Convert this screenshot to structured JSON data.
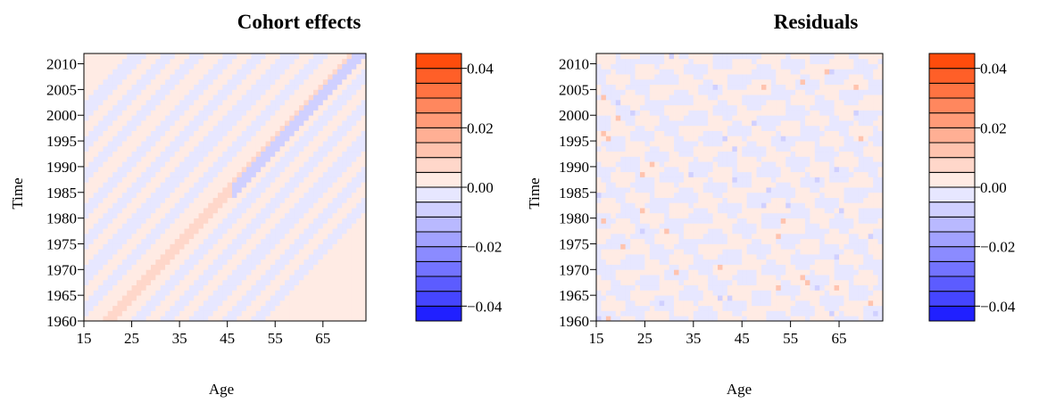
{
  "chart_data": [
    {
      "type": "heatmap",
      "title": "Cohort effects",
      "xlabel": "Age",
      "ylabel": "Time",
      "xlim": [
        15,
        74
      ],
      "ylim": [
        1960,
        2012
      ],
      "x_ticks": [
        "15",
        "25",
        "35",
        "45",
        "55",
        "65"
      ],
      "y_ticks": [
        "1960",
        "1965",
        "1970",
        "1975",
        "1980",
        "1985",
        "1990",
        "1995",
        "2000",
        "2005",
        "2010"
      ],
      "pattern": "diagonal cohort bands (year - age constant); strongest positive band near birth cohort 1940, weak negative bands elsewhere",
      "colorbar": {
        "tick_labels": [
          "0.04",
          "0.02",
          "0.00",
          "−0.02",
          "−0.04"
        ],
        "levels": [
          -0.045,
          -0.04,
          -0.035,
          -0.03,
          -0.025,
          -0.02,
          -0.015,
          -0.01,
          -0.005,
          0.0,
          0.005,
          0.01,
          0.015,
          0.02,
          0.025,
          0.03,
          0.035,
          0.04,
          0.045
        ]
      }
    },
    {
      "type": "heatmap",
      "title": "Residuals",
      "xlabel": "Age",
      "ylabel": "Time",
      "xlim": [
        15,
        74
      ],
      "ylim": [
        1960,
        2012
      ],
      "x_ticks": [
        "15",
        "25",
        "35",
        "45",
        "55",
        "65"
      ],
      "y_ticks": [
        "1960",
        "1965",
        "1970",
        "1975",
        "1980",
        "1985",
        "1990",
        "1995",
        "2000",
        "2005",
        "2010"
      ],
      "pattern": "near-zero noise alternating slightly positive and slightly negative, with a few small spots of larger magnitude",
      "colorbar": {
        "tick_labels": [
          "0.04",
          "0.02",
          "0.00",
          "−0.02",
          "−0.04"
        ],
        "levels": [
          -0.045,
          -0.04,
          -0.035,
          -0.03,
          -0.025,
          -0.02,
          -0.015,
          -0.01,
          -0.005,
          0.0,
          0.005,
          0.01,
          0.015,
          0.02,
          0.025,
          0.03,
          0.035,
          0.04,
          0.045
        ]
      }
    }
  ],
  "colors": {
    "level_colors": [
      "#2020ff",
      "#4545ff",
      "#5c5cff",
      "#7373ff",
      "#8b8bff",
      "#a2a2ff",
      "#b9b9ff",
      "#d0d0ff",
      "#e7e7ff",
      "#ffebe4",
      "#ffd7ca",
      "#ffc3ae",
      "#ffaf94",
      "#ff9b78",
      "#ff875e",
      "#ff7342",
      "#ff5f28",
      "#ff4c0c"
    ]
  }
}
